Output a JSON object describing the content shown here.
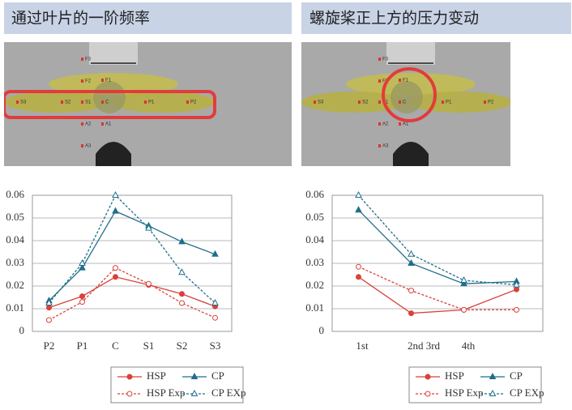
{
  "panels": [
    {
      "title": "通过叶片的一阶频率",
      "image_labels": [
        "F3",
        "F2",
        "F1",
        "S3",
        "S2",
        "S1",
        "C",
        "P1",
        "P2",
        "A2",
        "A1",
        "A3"
      ]
    },
    {
      "title": "螺旋桨正上方的压力变动",
      "image_labels": [
        "F3",
        "F2",
        "F1",
        "S3",
        "S2",
        "S1",
        "C",
        "P1",
        "P2",
        "A2",
        "A1",
        "A3"
      ]
    }
  ],
  "chart_data": [
    {
      "type": "line",
      "categories": [
        "P2",
        "P1",
        "C",
        "S1",
        "S2",
        "S3"
      ],
      "ylim": [
        0,
        0.06
      ],
      "yticks": [
        0,
        0.01,
        0.02,
        0.03,
        0.04,
        0.05,
        0.06
      ],
      "grid": true,
      "series": [
        {
          "name": "HSP",
          "color": "#d9413a",
          "dashed": false,
          "marker": "circle",
          "values": [
            0.0105,
            0.0155,
            0.024,
            0.0205,
            0.0165,
            0.011
          ]
        },
        {
          "name": "CP",
          "color": "#1f6f8b",
          "dashed": false,
          "marker": "triangle",
          "values": [
            0.0135,
            0.028,
            0.053,
            0.0465,
            0.0395,
            0.034
          ]
        },
        {
          "name": "HSP Exp",
          "color": "#d9413a",
          "dashed": true,
          "marker": "circle-open",
          "values": [
            0.005,
            0.013,
            0.028,
            0.021,
            0.0125,
            0.006
          ]
        },
        {
          "name": "CP EXp",
          "color": "#1f6f8b",
          "dashed": true,
          "marker": "triangle-open",
          "values": [
            0.0125,
            0.03,
            0.06,
            0.0455,
            0.026,
            0.0125
          ]
        }
      ]
    },
    {
      "type": "line",
      "categories": [
        "1st",
        "2nd 3rd",
        "4th",
        null
      ],
      "ylim": [
        0,
        0.06
      ],
      "yticks": [
        0,
        0.01,
        0.02,
        0.03,
        0.04,
        0.05,
        0.06
      ],
      "grid": true,
      "series": [
        {
          "name": "HSP",
          "color": "#d9413a",
          "dashed": false,
          "marker": "circle",
          "values": [
            0.024,
            0.008,
            0.0095,
            0.0185
          ]
        },
        {
          "name": "CP",
          "color": "#1f6f8b",
          "dashed": false,
          "marker": "triangle",
          "values": [
            0.0535,
            0.03,
            0.021,
            0.022
          ]
        },
        {
          "name": "HSP Exp",
          "color": "#d9413a",
          "dashed": true,
          "marker": "circle-open",
          "values": [
            0.0285,
            0.018,
            0.0095,
            0.0095
          ]
        },
        {
          "name": "CP EXp",
          "color": "#1f6f8b",
          "dashed": true,
          "marker": "triangle-open",
          "values": [
            0.06,
            0.034,
            0.0225,
            0.0205
          ]
        }
      ]
    }
  ]
}
